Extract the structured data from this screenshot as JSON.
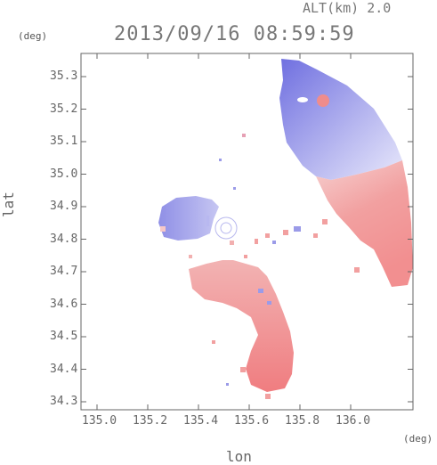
{
  "header": {
    "altitude_label": "ALT(km) 2.0",
    "timestamp": "2013/09/16 08:59:59"
  },
  "axes": {
    "y_unit": "(deg)",
    "x_unit": "(deg)",
    "xlabel": "lon",
    "ylabel": "lat",
    "yticks": [
      "35.3",
      "35.2",
      "35.1",
      "35.0",
      "34.9",
      "34.8",
      "34.7",
      "34.6",
      "34.5",
      "34.4",
      "34.3"
    ],
    "xticks": [
      "135.0",
      "135.2",
      "135.4",
      "135.6",
      "135.8",
      "136.0"
    ]
  },
  "colors": {
    "approaching": "#8888e8",
    "receding": "#f08a8a",
    "axis": "#666666"
  }
}
